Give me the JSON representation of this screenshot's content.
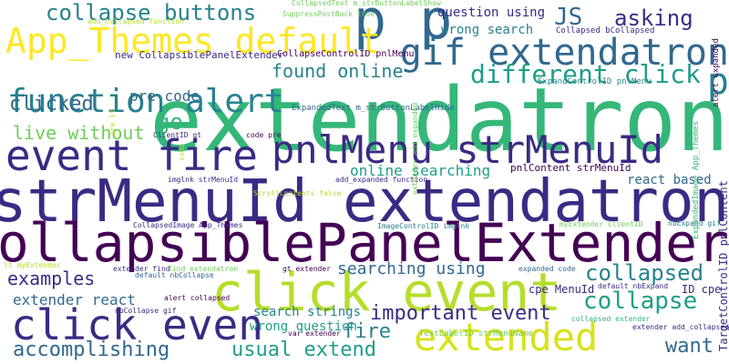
{
  "palette": {
    "background": "#ffffff",
    "dark_purple": "#440154",
    "indigo": "#3b2a84",
    "blue": "#31688e",
    "teal": "#26828e",
    "sea_green": "#1f9e89",
    "green": "#35b779",
    "lime": "#6ece58",
    "yellow_green": "#b5de2b",
    "yellow": "#fde725"
  },
  "words": [
    {
      "text": "extendatron",
      "color": "#35b779",
      "rotate": 0
    },
    {
      "text": "strMenuId extendatron",
      "color": "#3b2a84",
      "rotate": 0
    },
    {
      "text": "CollapsiblePanelExtender",
      "color": "#440154",
      "rotate": 0
    },
    {
      "text": "click event",
      "color": "#b5de2b",
      "rotate": 0
    },
    {
      "text": "p p",
      "color": "#31688e",
      "rotate": 0
    },
    {
      "text": "App_Themes default",
      "color": "#fde725",
      "rotate": 0
    },
    {
      "text": "event fire",
      "color": "#3b2a84",
      "rotate": 0
    },
    {
      "text": "pnlMenu strMenuId",
      "color": "#3b2a84",
      "rotate": 0
    },
    {
      "text": "gif extendatron",
      "color": "#31688e",
      "rotate": 0
    },
    {
      "text": "function alert",
      "color": "#26828e",
      "rotate": 0
    },
    {
      "text": "click even",
      "color": "#3b2a84",
      "rotate": 0
    },
    {
      "text": "extended",
      "color": "#d8e219",
      "rotate": 0
    },
    {
      "text": "collapse buttons",
      "color": "#26828e",
      "rotate": 0
    },
    {
      "text": "asking",
      "color": "#3b2a84",
      "rotate": 0
    },
    {
      "text": "JS",
      "color": "#31688e",
      "rotate": 0
    },
    {
      "text": "p",
      "color": "#26828e",
      "rotate": 0
    },
    {
      "text": "different click",
      "color": "#1f9e89",
      "rotate": 0
    },
    {
      "text": "found online",
      "color": "#26828e",
      "rotate": 0
    },
    {
      "text": "clicked",
      "color": "#31688e",
      "rotate": 0
    },
    {
      "text": "go",
      "color": "#35b779",
      "rotate": 0
    },
    {
      "text": "live without",
      "color": "#6ece58",
      "rotate": 0
    },
    {
      "text": "pre code",
      "color": "#31688e",
      "rotate": 0
    },
    {
      "text": "examples",
      "color": "#3b2a84",
      "rotate": 0
    },
    {
      "text": "collapsed",
      "color": "#26828e",
      "rotate": 0
    },
    {
      "text": "collapse",
      "color": "#1f9e89",
      "rotate": 0
    },
    {
      "text": "searching using",
      "color": "#31688e",
      "rotate": 0
    },
    {
      "text": "important event",
      "color": "#3b2a84",
      "rotate": 0
    },
    {
      "text": "fire",
      "color": "#26828e",
      "rotate": 0
    },
    {
      "text": "accomplishing",
      "color": "#31688e",
      "rotate": 0
    },
    {
      "text": "usual extend",
      "color": "#1f9e89",
      "rotate": 0
    },
    {
      "text": "want",
      "color": "#31688e",
      "rotate": 0
    },
    {
      "text": "extender react",
      "color": "#31688e",
      "rotate": 0
    },
    {
      "text": "online searching",
      "color": "#1f9e89",
      "rotate": 0
    },
    {
      "text": "react based",
      "color": "#31688e",
      "rotate": 0
    },
    {
      "text": "question using",
      "color": "#3b2a84",
      "rotate": 0
    },
    {
      "text": "wrong search",
      "color": "#26828e",
      "rotate": 0
    },
    {
      "text": "search strings",
      "color": "#26828e",
      "rotate": 0
    },
    {
      "text": "wrong question",
      "color": "#1f9e89",
      "rotate": 0
    },
    {
      "text": "cpe MenuId",
      "color": "#3b2a84",
      "rotate": 0
    },
    {
      "text": "ID cpe",
      "color": "#3b2a84",
      "rotate": 0
    },
    {
      "text": "pnlContent strMenuId",
      "color": "#440154",
      "rotate": 0
    },
    {
      "text": "new CollapsiblePanelExtender",
      "color": "#3b2a84",
      "rotate": 0
    },
    {
      "text": "CollapseControlID pnlMenu",
      "color": "#440154",
      "rotate": 0
    },
    {
      "text": "Collapsed bCollapsed",
      "color": "#3b2a84",
      "rotate": 0
    },
    {
      "text": "ExpandedText m_strButtonLabelHide",
      "color": "#31688e",
      "rotate": 0
    },
    {
      "text": "ExpandControlID pnlMenu",
      "color": "#26828e",
      "rotate": 0
    },
    {
      "text": "CollapsedText m_strButtonLabelShow",
      "color": "#6ece58",
      "rotate": 0
    },
    {
      "text": "SuppressPostBack true",
      "color": "#6ece58",
      "rotate": 0
    },
    {
      "text": "add_collapsed function",
      "color": "#b5de2b",
      "rotate": 0
    },
    {
      "text": "imglnk strMenuId",
      "color": "#3b2a84",
      "rotate": 0
    },
    {
      "text": "add_expanded function",
      "color": "#3b2a84",
      "rotate": 0
    },
    {
      "text": "ScrollContents false",
      "color": "#b5de2b",
      "rotate": 0
    },
    {
      "text": "CollapsedImage App_Themes",
      "color": "#3b2a84",
      "rotate": 0
    },
    {
      "text": "ImageControlID imglnk",
      "color": "#26828e",
      "rotate": 0
    },
    {
      "text": "myExtender ClientID",
      "color": "#6ece58",
      "rotate": 0
    },
    {
      "text": "nbExpand gif",
      "color": "#26828e",
      "rotate": 0
    },
    {
      "text": "ClientID gt",
      "color": "#3b2a84",
      "rotate": 0
    },
    {
      "text": "code pre",
      "color": "#440154",
      "rotate": 0
    },
    {
      "text": "extender find",
      "color": "#3b2a84",
      "rotate": 0
    },
    {
      "text": "find extendatron",
      "color": "#6ece58",
      "rotate": 0
    },
    {
      "text": "gt extender",
      "color": "#440154",
      "rotate": 0
    },
    {
      "text": "default nbCollapse",
      "color": "#31688e",
      "rotate": 0
    },
    {
      "text": "expanded code",
      "color": "#31688e",
      "rotate": 0
    },
    {
      "text": "default nbExpand",
      "color": "#3b2a84",
      "rotate": 0
    },
    {
      "text": "nbCollapse gif",
      "color": "#3b2a84",
      "rotate": 0
    },
    {
      "text": "alert collapsed",
      "color": "#440154",
      "rotate": 0
    },
    {
      "text": "var extender",
      "color": "#440154",
      "rotate": 0
    },
    {
      "text": "collapsed extender",
      "color": "#35b779",
      "rotate": 0
    },
    {
      "text": "extender add_collapsed",
      "color": "#3b2a84",
      "rotate": 0
    },
    {
      "text": "TextLabelID strMenuName",
      "color": "#6ece58",
      "rotate": 0
    },
    {
      "text": "lt myExtender",
      "color": "#b5de2b",
      "rotate": 0
    },
    {
      "text": "TargetControlID pnlContent",
      "color": "#3b2a84",
      "rotate": -90
    },
    {
      "text": "ExpandedImage App_Themes",
      "color": "#35b779",
      "rotate": -90
    },
    {
      "text": "alert expanded",
      "color": "#440154",
      "rotate": -90
    },
    {
      "text": "extender add_expanded",
      "color": "#6ece58",
      "rotate": -90
    },
    {
      "text": "pre lt",
      "color": "#b5de2b",
      "rotate": -90
    },
    {
      "text": "code",
      "color": "#b5de2b",
      "rotate": -90
    }
  ]
}
